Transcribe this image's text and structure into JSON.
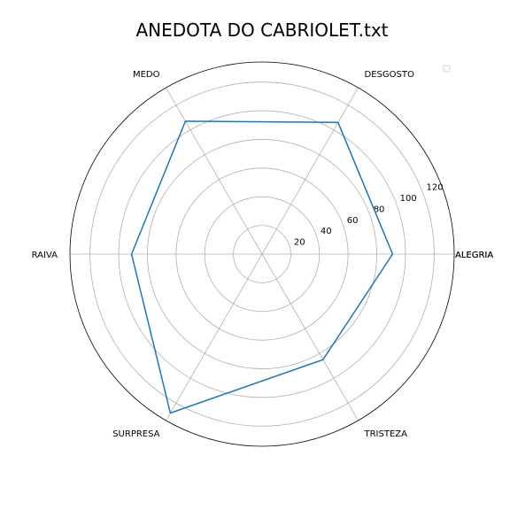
{
  "chart_data": {
    "type": "radar",
    "title": "ANEDOTA DO CABRIOLET.txt",
    "categories": [
      "ALEGRIA",
      "DESGOSTO",
      "MEDO",
      "RAIVA",
      "SURPRESA",
      "TRISTEZA"
    ],
    "category_labels_drawn": [
      "ALEGRIA",
      "DESGOSTO",
      "MEDO",
      "RAIVA",
      "SURPRESA",
      "TRISTEZA",
      "ALEGRIA"
    ],
    "series": [
      {
        "values": [
          91,
          106,
          107,
          91,
          128,
          85
        ],
        "color": "#1f77b4"
      }
    ],
    "rlim": [
      0,
      134
    ],
    "r_ticks": [
      20,
      40,
      60,
      80,
      100,
      120
    ],
    "grid": true,
    "legend": {
      "position": "top-right",
      "entries": []
    }
  }
}
